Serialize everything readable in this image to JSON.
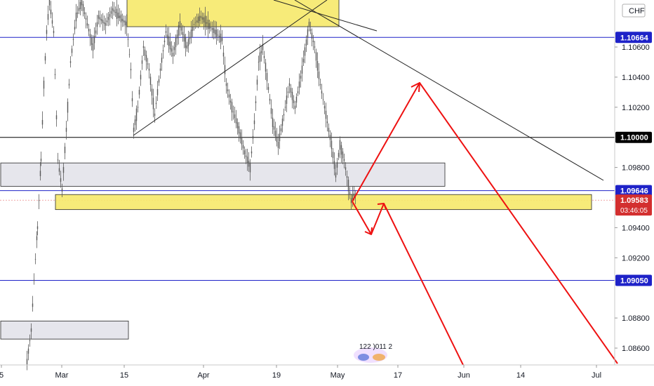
{
  "chart_data": {
    "type": "candlestick",
    "currency": "CHF",
    "y_axis": {
      "ticks": [
        "1.10600",
        "1.10400",
        "1.10200",
        "1.09800",
        "1.09400",
        "1.09200",
        "1.08800",
        "1.08600"
      ],
      "range": [
        1.085,
        1.1093
      ]
    },
    "x_axis": {
      "ticks": [
        "5",
        "Mar",
        "15",
        "Apr",
        "19",
        "May",
        "17",
        "Jun",
        "14",
        "Jul"
      ]
    },
    "price_labels": [
      {
        "value": 1.10664,
        "text": "1.10664",
        "color": "#1e22c8"
      },
      {
        "value": 1.1,
        "text": "1.10000",
        "color": "#000000"
      },
      {
        "value": 1.09646,
        "text": "1.09646",
        "color": "#1e22c8"
      },
      {
        "value": 1.09583,
        "text": "1.09583",
        "sub": "03:46:05",
        "color": "#d32f2f"
      },
      {
        "value": 1.0905,
        "text": "1.09050",
        "color": "#1e22c8"
      }
    ],
    "horizontal_lines": [
      {
        "value": 1.10664,
        "color": "#1e22c8"
      },
      {
        "value": 1.1,
        "color": "#000000"
      },
      {
        "value": 1.09646,
        "color": "#1e22c8"
      },
      {
        "value": 1.0905,
        "color": "#1e22c8"
      }
    ],
    "zones": [
      {
        "kind": "resistance",
        "color": "#f7e96b",
        "y_from": 1.1092,
        "y_to": 1.10735
      },
      {
        "kind": "grey",
        "color": "#e4e4ea",
        "y_from": 1.0983,
        "y_to": 1.09675
      },
      {
        "kind": "support",
        "color": "#f7e96b",
        "y_from": 1.0962,
        "y_to": 1.0952
      },
      {
        "kind": "grey",
        "color": "#e4e4ea",
        "y_from": 1.0878,
        "y_to": 1.0866
      }
    ],
    "watermark_text": "122 )011 2"
  }
}
